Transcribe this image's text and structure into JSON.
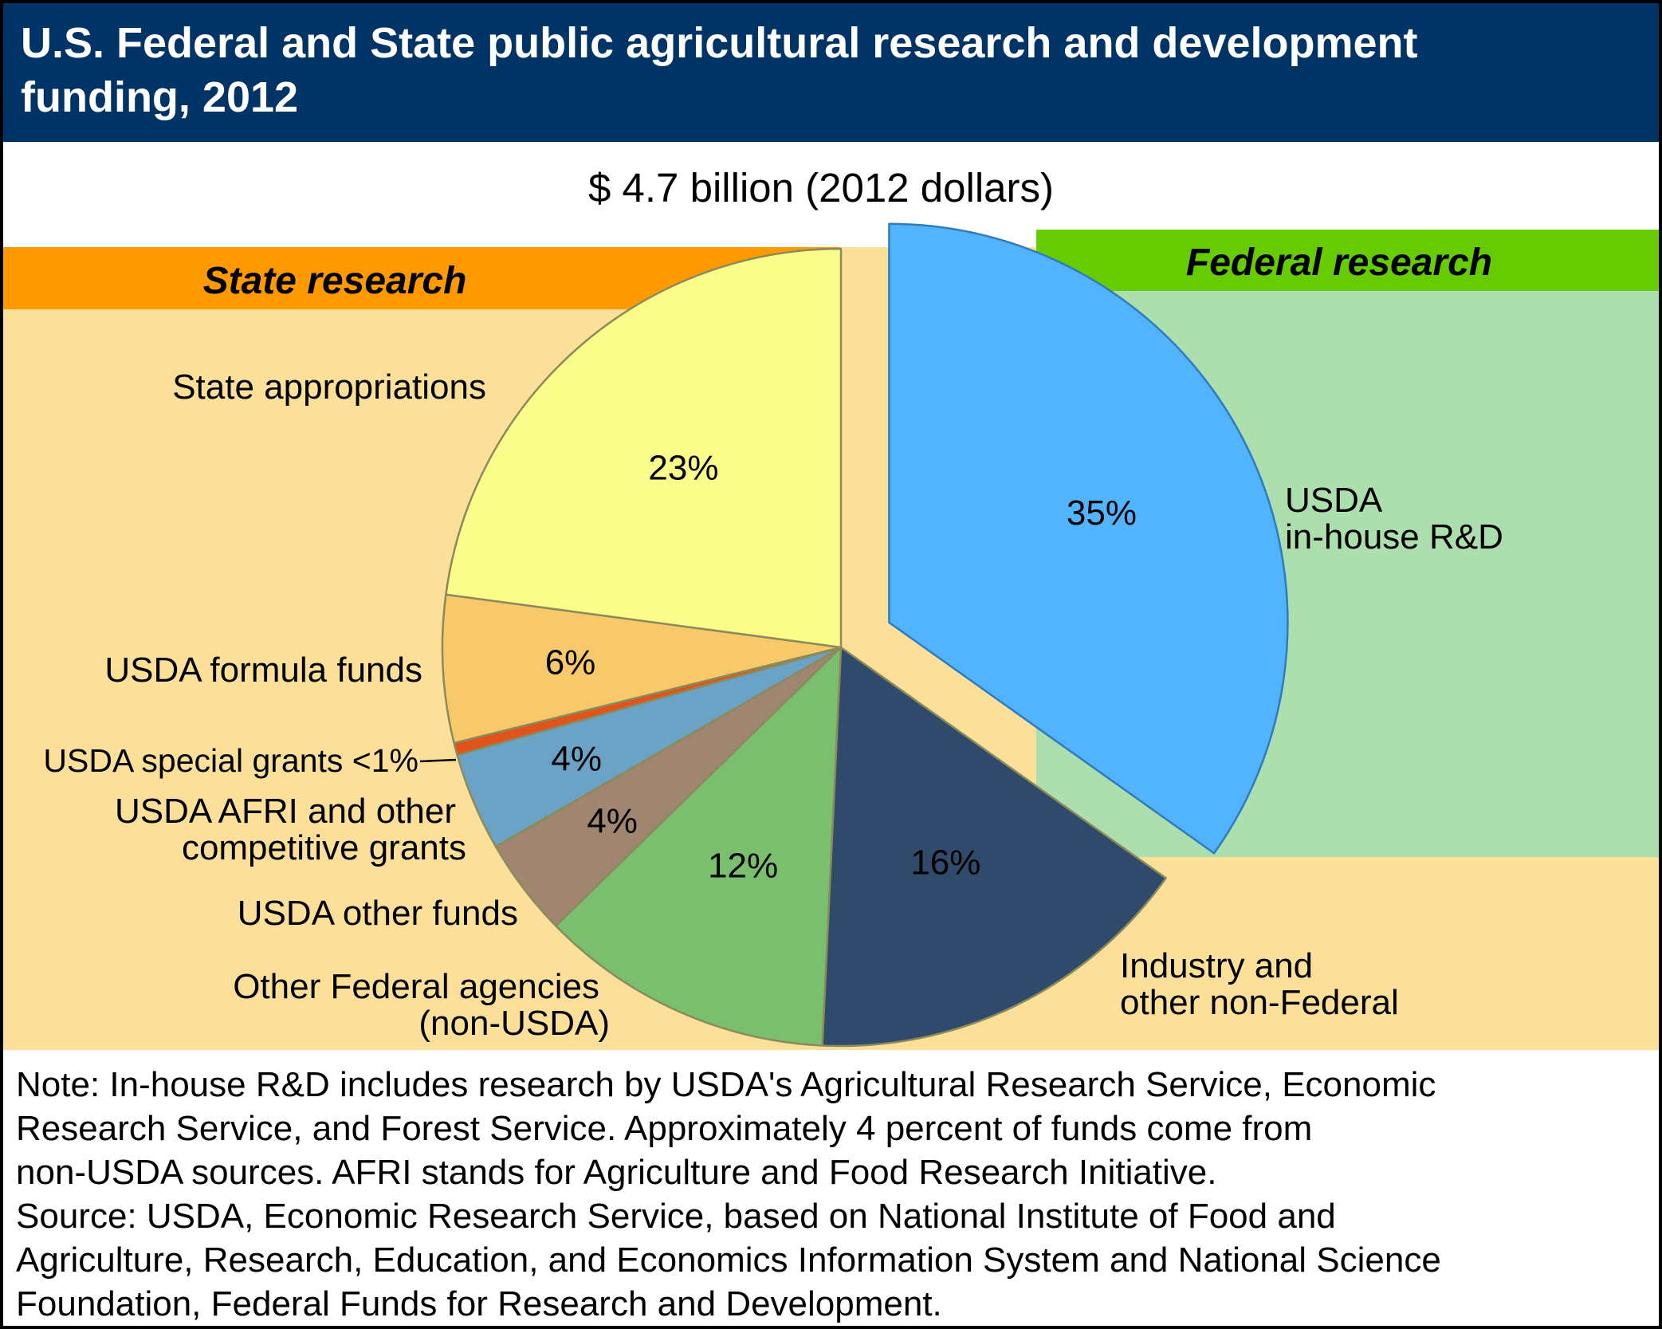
{
  "header": {
    "title_line1": "U.S. Federal and State public agricultural research and development",
    "title_line2": "funding, 2012",
    "subtitle": "$ 4.7 billion (2012 dollars)"
  },
  "groups": {
    "state": {
      "label": "State research",
      "bar_color": "#ff9900",
      "bg_color": "#fce09a"
    },
    "federal": {
      "label": "Federal research",
      "bar_color": "#66cc00",
      "bg_color": "#addfae"
    }
  },
  "chart_data": {
    "type": "pie",
    "title": "U.S. Federal and State public agricultural research and development funding, 2012",
    "total_label": "$ 4.7 billion (2012 dollars)",
    "unit": "%",
    "slices": [
      {
        "name": "USDA in-house R&D",
        "value": 35,
        "value_label": "35%",
        "label_lines": [
          "USDA",
          "in-house R&D"
        ],
        "color": "#52b3ff",
        "group": "federal",
        "exploded": true,
        "label_color": "#000000"
      },
      {
        "name": "Industry and other non-Federal",
        "value": 16,
        "value_label": "16%",
        "label_lines": [
          "Industry and",
          "other non-Federal"
        ],
        "color": "#2f4a6b",
        "group": "state",
        "exploded": false,
        "label_color": "#ffffff"
      },
      {
        "name": "Other Federal agencies (non-USDA)",
        "value": 12,
        "value_label": "12%",
        "label_lines": [
          "Other Federal agencies",
          "(non-USDA)"
        ],
        "color": "#79bf6d",
        "group": "state",
        "exploded": false,
        "label_color": "#000000"
      },
      {
        "name": "USDA other funds",
        "value": 4,
        "value_label": "4%",
        "label_lines": [
          "USDA other funds"
        ],
        "color": "#a08570",
        "group": "state",
        "exploded": false,
        "label_color": "#000000"
      },
      {
        "name": "USDA AFRI and other competitive grants",
        "value": 4,
        "value_label": "4%",
        "label_lines": [
          "USDA AFRI and other",
          "competitive grants"
        ],
        "color": "#6aa3c6",
        "group": "state",
        "exploded": false,
        "label_color": "#000000"
      },
      {
        "name": "USDA special grants",
        "value": 0.5,
        "value_label": "",
        "label_lines": [
          "USDA special grants <1%"
        ],
        "color": "#e0541c",
        "group": "state",
        "exploded": false,
        "label_color": "#000000"
      },
      {
        "name": "USDA formula funds",
        "value": 6,
        "value_label": "6%",
        "label_lines": [
          "USDA formula funds"
        ],
        "color": "#f8c96a",
        "group": "state",
        "exploded": false,
        "label_color": "#000000"
      },
      {
        "name": "State appropriations",
        "value": 23,
        "value_label": "23%",
        "label_lines": [
          "State appropriations"
        ],
        "color": "#fafd8a",
        "group": "state",
        "exploded": false,
        "label_color": "#000000"
      }
    ]
  },
  "notes": [
    "Note: In-house R&D includes research by USDA's Agricultural Research Service, Economic",
    "Research Service, and Forest Service. Approximately 4 percent of funds come from",
    "non-USDA sources. AFRI stands for Agriculture and Food Research Initiative.",
    "Source: USDA, Economic Research Service, based on National Institute of Food and",
    "Agriculture, Research, Education, and Economics Information System and National Science",
    "Foundation, Federal Funds for Research and Development."
  ]
}
